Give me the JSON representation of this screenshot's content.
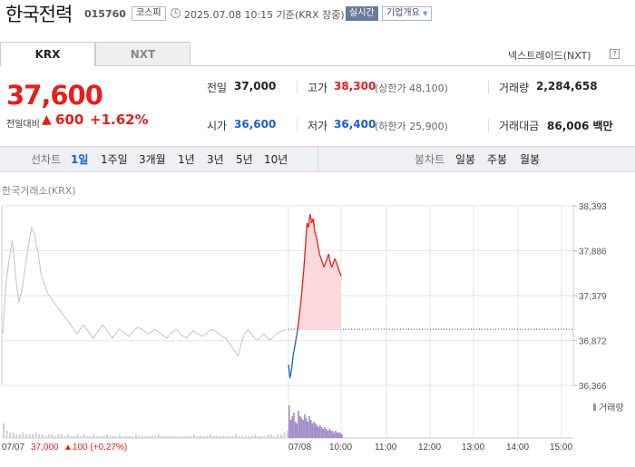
{
  "header": {
    "stock_name": "한국전력",
    "code": "015760",
    "market": "코스피",
    "datetime": "2025.07.08 10:15",
    "basis": "기준(KRX 장중)",
    "realtime_badge": "실시간",
    "company_button": "기업개요"
  },
  "market_tabs": [
    "KRX",
    "NXT"
  ],
  "nextrade_link": "넥스트레이드(NXT)",
  "price": {
    "current": "37,600",
    "change_label": "전일대비",
    "change_arrow": "▲",
    "change": "600",
    "change_pct": "+1.62%"
  },
  "quotes": {
    "prev_close_label": "전일",
    "prev_close": "37,000",
    "high_label": "고가",
    "high": "38,300",
    "upper_limit": "(상한가 48,100)",
    "volume_label": "거래량",
    "volume": "2,284,658",
    "open_label": "시가",
    "open": "36,600",
    "low_label": "저가",
    "low": "36,400",
    "lower_limit": "(하한가 25,900)",
    "amount_label": "거래대금",
    "amount": "86,006",
    "amount_unit": "백만"
  },
  "toolbar": {
    "line_chart_label": "선차트",
    "periods": [
      "1일",
      "1주일",
      "3개월",
      "1년",
      "3년",
      "5년",
      "10년"
    ],
    "active_period": "1일",
    "candle_label": "봉차트",
    "candle_periods": [
      "일봉",
      "주봉",
      "월봉"
    ]
  },
  "chart_caption": "한국거래소(KRX)",
  "chart_data": {
    "type": "line",
    "y_ticks": [
      "38,393",
      "37,886",
      "37,379",
      "36,872",
      "36,366"
    ],
    "ylim": [
      36366,
      38393
    ],
    "prev_close": 37000,
    "x_ticks": [
      "07/07",
      "07/08",
      "10:00",
      "11:00",
      "12:00",
      "13:00",
      "14:00",
      "15:00"
    ],
    "prev_day_label": "07/07",
    "prev_day_close": "37,000",
    "prev_day_change": "▲100 (+0.27%)",
    "volume_legend": "거래량",
    "prev_day_series": [
      36950,
      37500,
      37800,
      38000,
      37600,
      37300,
      37450,
      37700,
      37950,
      38150,
      38050,
      37850,
      37600,
      37500,
      37400,
      37350,
      37300,
      37250,
      37200,
      37150,
      37100,
      37050,
      37000,
      36950,
      37000,
      37050,
      37000,
      36950,
      36900,
      36950,
      37000,
      37050,
      37000,
      36950,
      36900,
      36950,
      37000,
      36980,
      36950,
      36920,
      36950,
      37000,
      37020,
      37000,
      36980,
      36950,
      36970,
      37000,
      36980,
      36950,
      36920,
      36900,
      36950,
      36980,
      37000,
      36950,
      36920,
      36900,
      36950,
      36980,
      36960,
      36940,
      36920,
      36950,
      36980,
      37000,
      36980,
      36950,
      36920,
      36900,
      36850,
      36800,
      36750,
      36700,
      36850,
      36950,
      37000,
      36950,
      36900,
      36880,
      36920,
      36950,
      36900,
      36880,
      36920,
      36950,
      36970,
      36990,
      37000
    ],
    "today_series": [
      36600,
      36450,
      36550,
      36700,
      36800,
      36900,
      37000,
      37150,
      37300,
      37500,
      37700,
      37950,
      38200,
      38150,
      38300,
      38200,
      38250,
      38100,
      38050,
      37950,
      37850,
      37800,
      37750,
      37700,
      37750,
      37800,
      37850,
      37750,
      37700,
      37750,
      37800,
      37750,
      37700,
      37650,
      37600
    ],
    "prev_day_volume": [
      8,
      4,
      3,
      3,
      2,
      2,
      3,
      2,
      2,
      2,
      3,
      2,
      2,
      1,
      2,
      2,
      1,
      2,
      2,
      1,
      2,
      1,
      1,
      2,
      1,
      2,
      1,
      1,
      2,
      1,
      1,
      1,
      2,
      1,
      1,
      1,
      2,
      1,
      1,
      1,
      1,
      2,
      1,
      1,
      1,
      1,
      1,
      1,
      2,
      1,
      1,
      1,
      1,
      1,
      1,
      1,
      1,
      1,
      1,
      2,
      1,
      1,
      1,
      1,
      2,
      1,
      1,
      1,
      1,
      1,
      1,
      1,
      2,
      1,
      1,
      1,
      1,
      1,
      2,
      1,
      1,
      1,
      2,
      2,
      1,
      2,
      2,
      3,
      4
    ],
    "today_volume": [
      18,
      10,
      12,
      14,
      9,
      8,
      15,
      12,
      11,
      10,
      13,
      11,
      9,
      12,
      10,
      8,
      9,
      8,
      7,
      6,
      7,
      6,
      5,
      6,
      5,
      4,
      5,
      4,
      4,
      3,
      4,
      3,
      3,
      3,
      2
    ]
  }
}
